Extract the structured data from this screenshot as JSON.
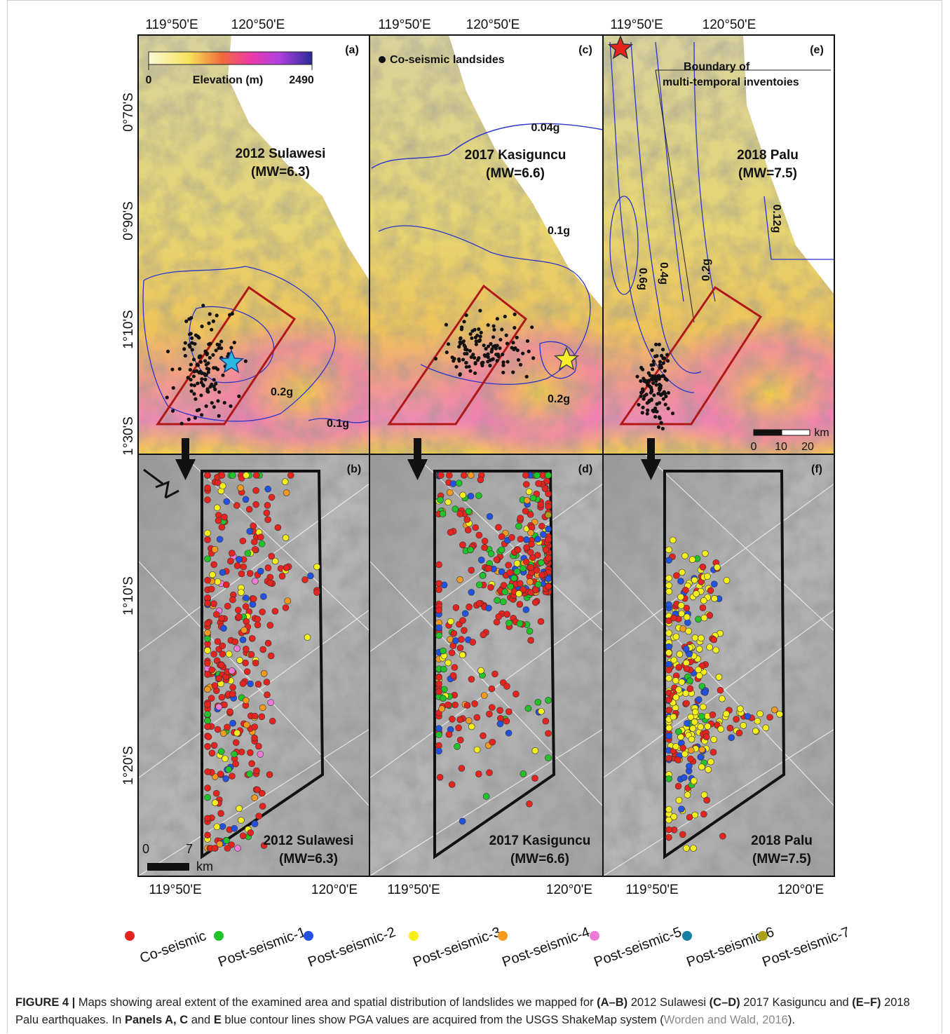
{
  "axes": {
    "top": [
      [
        "119°50'E",
        "120°50'E"
      ],
      [
        "119°50'E",
        "120°50'E"
      ],
      [
        "119°50'E",
        "120°50'E"
      ]
    ],
    "left_top": [
      "0°70'S",
      "0°90'S",
      "1°10'S",
      "1°30'S"
    ],
    "left_bottom": [
      "1°10'S",
      "1°20'S"
    ],
    "bottom": [
      [
        "119°50'E",
        "120°0'E"
      ],
      [
        "119°50'E",
        "120°0'E"
      ],
      [
        "119°50'E",
        "120°0'E"
      ]
    ]
  },
  "panels": {
    "a": {
      "label": "(a)",
      "colorbar": {
        "min": "0",
        "title": "Elevation (m)",
        "max": "2490"
      },
      "event": "2012 Sulawesi",
      "magnitude": "(MW=6.3)",
      "contours": [
        "0.2g",
        "0.1g"
      ]
    },
    "b": {
      "label": "(b)",
      "event": "2012 Sulawesi",
      "magnitude": "(MW=6.3)",
      "scale": [
        "0",
        "7",
        "km"
      ]
    },
    "c": {
      "label": "(c)",
      "legend": "Co-seismic landsides",
      "event": "2017 Kasiguncu",
      "magnitude": "(MW=6.6)",
      "contours": [
        "0.04g",
        "0.1g",
        "0.2g"
      ]
    },
    "d": {
      "label": "(d)",
      "event": "2017 Kasiguncu",
      "magnitude": "(MW=6.6)"
    },
    "e": {
      "label": "(e)",
      "boundary": [
        "Boundary of",
        "multi-temporal inventoies"
      ],
      "event": "2018 Palu",
      "magnitude": "(MW=7.5)",
      "contours": [
        "0.12g",
        "0.6g",
        "0.4g",
        "0.2g"
      ],
      "scale": [
        "0",
        "10",
        "20",
        "km"
      ]
    },
    "f": {
      "label": "(f)",
      "event": "2018 Palu",
      "magnitude": "(MW=7.5)"
    }
  },
  "legend": [
    {
      "name": "Co-seismic",
      "color": "#e5241f"
    },
    {
      "name": "Post-seismic-1",
      "color": "#22c22a"
    },
    {
      "name": "Post-seismic-2",
      "color": "#2352e0"
    },
    {
      "name": "Post-seismic-3",
      "color": "#f5ef1c"
    },
    {
      "name": "Post-seismic-4",
      "color": "#f39a1f"
    },
    {
      "name": "Post-seismic-5",
      "color": "#f07ad8"
    },
    {
      "name": "Post-seismic-6",
      "color": "#1a7fa2"
    },
    {
      "name": "Post-seismic-7",
      "color": "#a9a11b"
    }
  ],
  "caption": [
    {
      "text": "FIGURE 4 |",
      "style": "bold"
    },
    {
      "text": " Maps showing areal extent of the examined area and spatial distribution of landslides we mapped for ",
      "style": "normal"
    },
    {
      "text": "(A–B)",
      "style": "bold"
    },
    {
      "text": " 2012 Sulawesi ",
      "style": "normal"
    },
    {
      "text": "(C–D)",
      "style": "bold"
    },
    {
      "text": " 2017 Kasiguncu and ",
      "style": "normal"
    },
    {
      "text": "(E–F)",
      "style": "bold"
    },
    {
      "text": " 2018 Palu earthquakes. In ",
      "style": "normal"
    },
    {
      "text": "Panels A, C",
      "style": "bold"
    },
    {
      "text": " and ",
      "style": "normal"
    },
    {
      "text": "E",
      "style": "bold"
    },
    {
      "text": " blue contour lines show PGA values are acquired from the USGS ShakeMap system (",
      "style": "normal"
    },
    {
      "text": "Worden and Wald, 2016",
      "style": "link"
    },
    {
      "text": ").",
      "style": "normal"
    }
  ]
}
